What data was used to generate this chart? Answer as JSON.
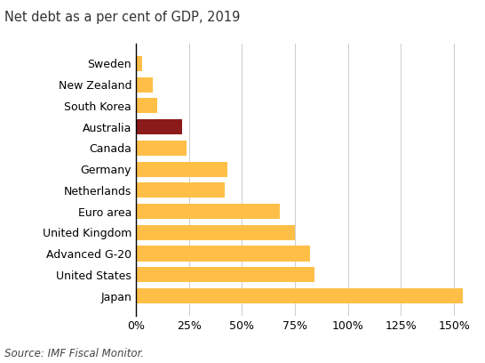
{
  "title": "Net debt as a per cent of GDP, 2019",
  "source": "Source: IMF Fiscal Monitor.",
  "categories": [
    "Sweden",
    "New Zealand",
    "South Korea",
    "Australia",
    "Canada",
    "Germany",
    "Netherlands",
    "Euro area",
    "United Kingdom",
    "Advanced G-20",
    "United States",
    "Japan"
  ],
  "values": [
    3,
    8,
    10,
    22,
    24,
    43,
    42,
    68,
    75,
    82,
    84,
    154
  ],
  "colors": [
    "#FFBF47",
    "#FFBF47",
    "#FFBF47",
    "#8B1A1A",
    "#FFBF47",
    "#FFBF47",
    "#FFBF47",
    "#FFBF47",
    "#FFBF47",
    "#FFBF47",
    "#FFBF47",
    "#FFBF47"
  ],
  "xlim": [
    0,
    160
  ],
  "xticks": [
    0,
    25,
    50,
    75,
    100,
    125,
    150
  ],
  "xticklabels": [
    "0%",
    "25%",
    "50%",
    "75%",
    "100%",
    "125%",
    "150%"
  ],
  "background_color": "#ffffff",
  "title_fontsize": 10.5,
  "tick_fontsize": 9,
  "source_fontsize": 8.5,
  "bar_height": 0.72
}
